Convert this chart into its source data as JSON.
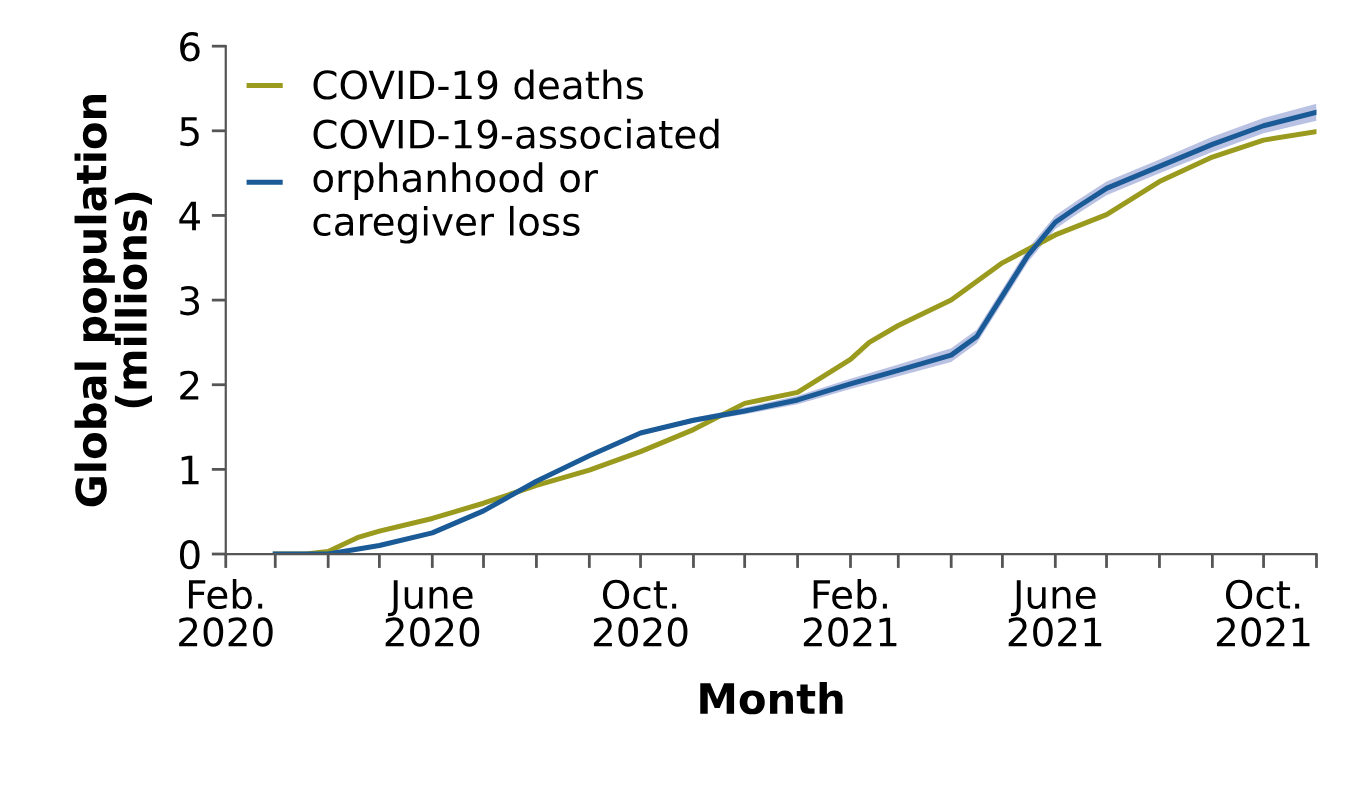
{
  "chart_data": {
    "type": "line",
    "xlabel": "Month",
    "ylabel": "Global population\n(millions)",
    "xlim": [
      "2020-02-01",
      "2021-11-01"
    ],
    "ylim": [
      0,
      6
    ],
    "yticks": [
      0,
      1,
      2,
      3,
      4,
      5,
      6
    ],
    "xticks": [
      {
        "value": "2020-02",
        "label": "Feb.\n2020"
      },
      {
        "value": "2020-03",
        "label": null
      },
      {
        "value": "2020-04",
        "label": null
      },
      {
        "value": "2020-05",
        "label": null
      },
      {
        "value": "2020-06",
        "label": "June\n2020"
      },
      {
        "value": "2020-07",
        "label": null
      },
      {
        "value": "2020-08",
        "label": null
      },
      {
        "value": "2020-09",
        "label": null
      },
      {
        "value": "2020-10",
        "label": "Oct.\n2020"
      },
      {
        "value": "2020-11",
        "label": null
      },
      {
        "value": "2020-12",
        "label": null
      },
      {
        "value": "2021-01",
        "label": null
      },
      {
        "value": "2021-02",
        "label": "Feb.\n2021"
      },
      {
        "value": "2021-03",
        "label": null
      },
      {
        "value": "2021-04",
        "label": null
      },
      {
        "value": "2021-05",
        "label": null
      },
      {
        "value": "2021-06",
        "label": "June\n2021"
      },
      {
        "value": "2021-07",
        "label": null
      },
      {
        "value": "2021-08",
        "label": null
      },
      {
        "value": "2021-09",
        "label": null
      },
      {
        "value": "2021-10",
        "label": "Oct.\n2021"
      },
      {
        "value": "2021-11",
        "label": null
      }
    ],
    "grid": false,
    "legend": "top left",
    "marker": "none",
    "line_style": "solid",
    "series": [
      {
        "name": "COVID-19 deaths",
        "color": "#9a9a1e",
        "x": [
          "2020-03-01",
          "2020-03-19",
          "2020-04-01",
          "2020-04-19",
          "2020-05-01",
          "2020-06-01",
          "2020-07-01",
          "2020-08-01",
          "2020-09-01",
          "2020-10-01",
          "2020-11-01",
          "2020-12-01",
          "2021-01-01",
          "2021-02-01",
          "2021-02-12",
          "2021-03-01",
          "2021-04-01",
          "2021-05-01",
          "2021-06-01",
          "2021-07-01",
          "2021-08-01",
          "2021-09-01",
          "2021-10-01",
          "2021-11-01"
        ],
        "values": [
          0,
          0,
          0.03,
          0.2,
          0.27,
          0.42,
          0.6,
          0.81,
          0.99,
          1.21,
          1.47,
          1.78,
          1.91,
          2.3,
          2.5,
          2.7,
          3.0,
          3.44,
          3.77,
          4.01,
          4.4,
          4.69,
          4.89,
          4.99
        ]
      },
      {
        "name": "COVID-19-associated\norphanhood or\ncaregiver loss",
        "color": "#1a5a96",
        "x": [
          "2020-03-01",
          "2020-04-01",
          "2020-05-01",
          "2020-06-01",
          "2020-07-01",
          "2020-08-01",
          "2020-09-01",
          "2020-10-01",
          "2020-11-01",
          "2020-12-01",
          "2021-01-01",
          "2021-02-01",
          "2021-03-01",
          "2021-04-01",
          "2021-04-16",
          "2021-05-01",
          "2021-05-16",
          "2021-06-01",
          "2021-06-14",
          "2021-07-01",
          "2021-08-01",
          "2021-09-01",
          "2021-10-01",
          "2021-11-01"
        ],
        "values": [
          0,
          0,
          0.1,
          0.25,
          0.51,
          0.86,
          1.16,
          1.43,
          1.58,
          1.69,
          1.82,
          2.01,
          2.17,
          2.35,
          2.57,
          3.05,
          3.53,
          3.92,
          4.1,
          4.32,
          4.58,
          4.84,
          5.06,
          5.22
        ],
        "lower": [
          0,
          0,
          0.1,
          0.25,
          0.51,
          0.86,
          1.15,
          1.41,
          1.55,
          1.65,
          1.77,
          1.95,
          2.1,
          2.27,
          2.49,
          2.97,
          3.45,
          3.84,
          4.02,
          4.24,
          4.5,
          4.75,
          4.97,
          5.12
        ],
        "upper": [
          0,
          0,
          0.1,
          0.25,
          0.51,
          0.86,
          1.17,
          1.45,
          1.61,
          1.73,
          1.87,
          2.07,
          2.24,
          2.43,
          2.65,
          3.13,
          3.61,
          4.0,
          4.18,
          4.4,
          4.66,
          4.93,
          5.15,
          5.32
        ]
      }
    ]
  }
}
